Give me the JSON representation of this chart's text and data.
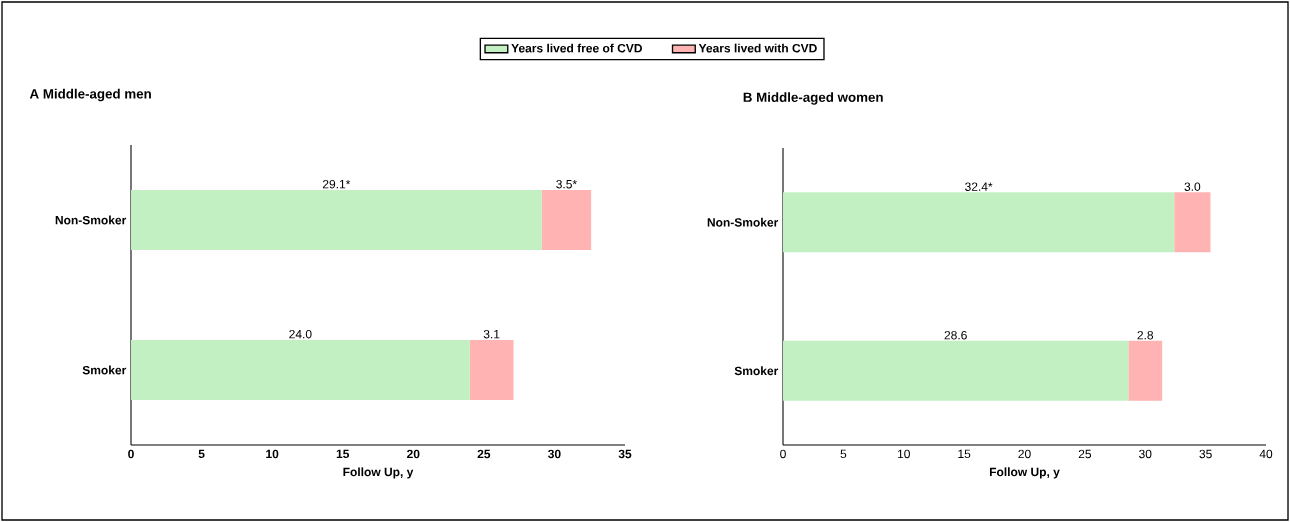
{
  "chart_data": [
    {
      "type": "bar",
      "orientation": "horizontal",
      "stacked": true,
      "title": "A Middle-aged men",
      "xlabel": "Follow Up, y",
      "categories": [
        "Non-Smoker",
        "Smoker"
      ],
      "xlim": [
        0,
        35
      ],
      "xticks": [
        0,
        5,
        10,
        15,
        20,
        25,
        30,
        35
      ],
      "legend": "top",
      "series": [
        {
          "name": "Years lived free of CVD",
          "color": "#c2f0c2",
          "values": [
            29.1,
            24.0
          ],
          "value_labels": [
            "29.1*",
            "24.0"
          ]
        },
        {
          "name": "Years lived with CVD",
          "color": "#ffb3b3",
          "values": [
            3.5,
            3.1
          ],
          "value_labels": [
            "3.5*",
            "3.1"
          ]
        }
      ]
    },
    {
      "type": "bar",
      "orientation": "horizontal",
      "stacked": true,
      "title": "B Middle-aged women",
      "xlabel": "Follow Up, y",
      "categories": [
        "Non-Smoker",
        "Smoker"
      ],
      "xlim": [
        0,
        40
      ],
      "xticks": [
        0,
        5,
        10,
        15,
        20,
        25,
        30,
        35,
        40
      ],
      "series": [
        {
          "color": "#c2f0c2",
          "values": [
            32.4,
            28.6
          ],
          "value_labels": [
            "32.4*",
            "28.6"
          ]
        },
        {
          "color": "#ffb3b3",
          "values": [
            3.0,
            2.8
          ],
          "value_labels": [
            "3.0",
            "2.8"
          ]
        }
      ]
    }
  ]
}
